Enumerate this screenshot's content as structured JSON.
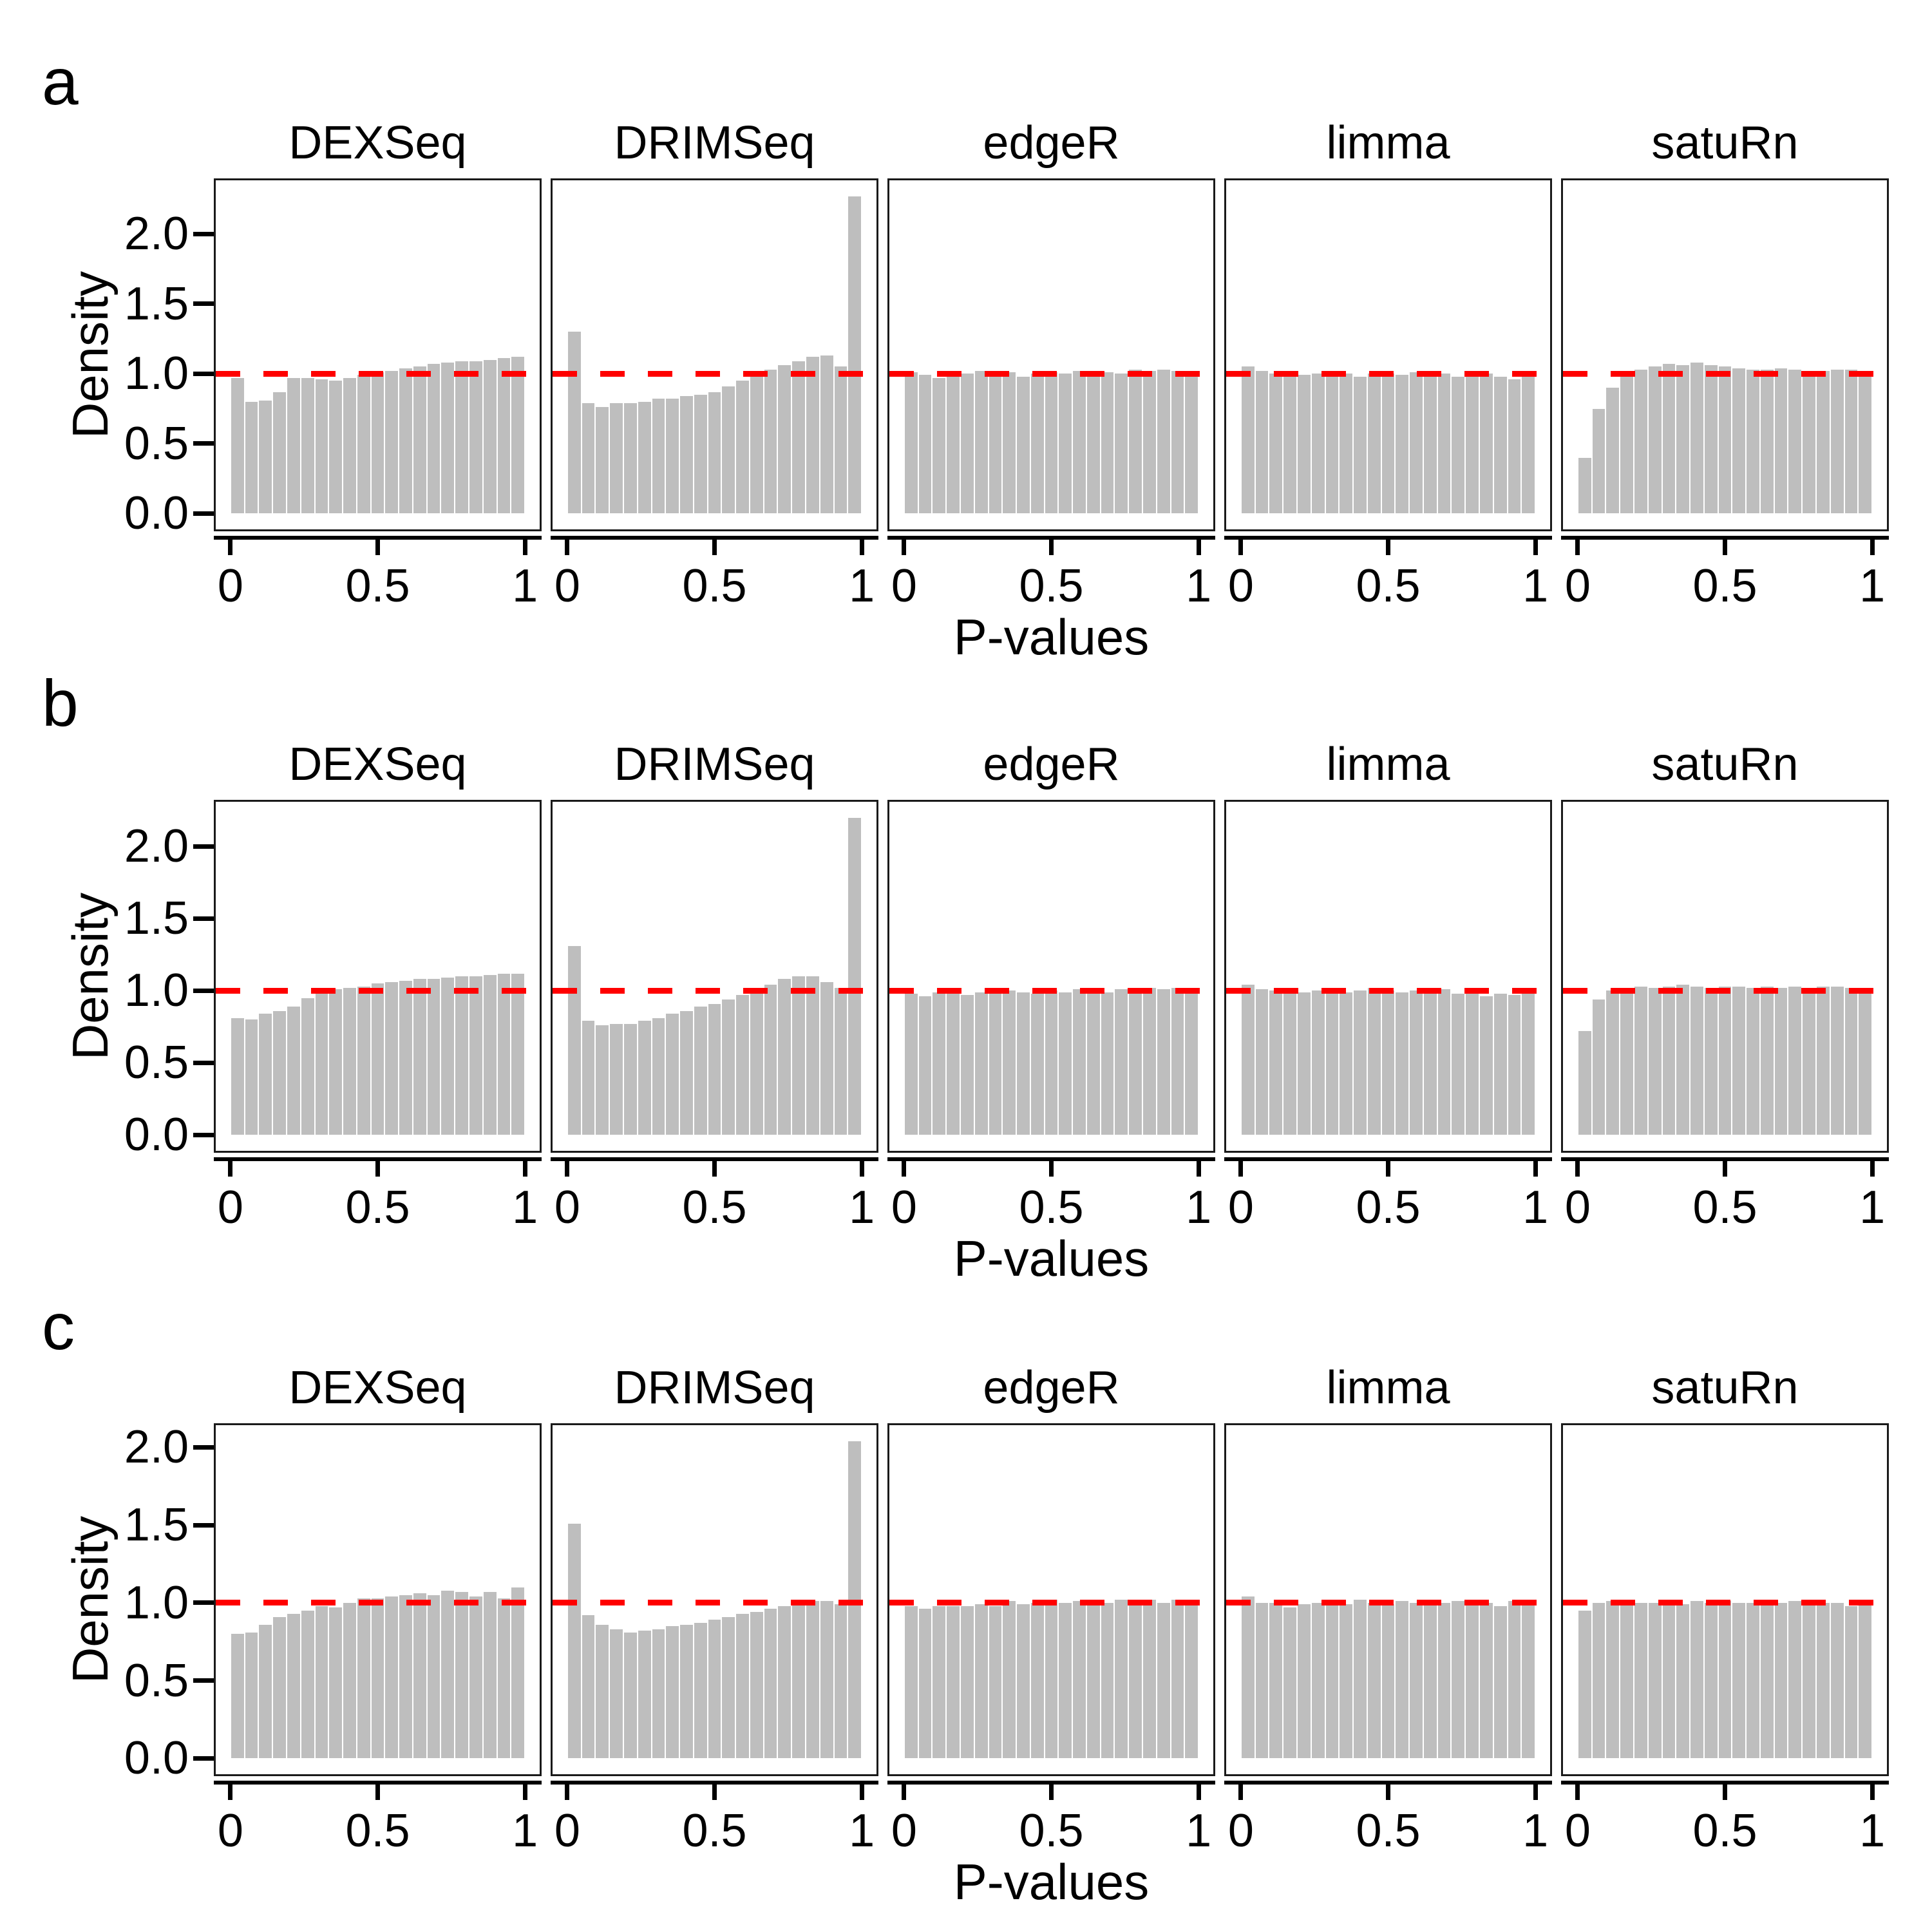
{
  "chart_data": {
    "type": "bar",
    "subtype": "histogram-grid",
    "description": "P-value histograms (density scale) for five methods across three scenarios, with a red dashed reference line at density 1",
    "x_range": [
      0,
      1
    ],
    "n_bins": 21,
    "grid": false,
    "legend": "none",
    "reference_line": {
      "y": 1.0,
      "style": "dashed",
      "color": "#ff0000"
    },
    "colors": {
      "bar_fill": "#bebebe",
      "bar_gap": "#ffffff",
      "panel_border": "#1a1a1a",
      "axis": "#000000",
      "text": "#000000",
      "reference": "#ff0000"
    },
    "y_tick_labels": [
      "0.0",
      "0.5",
      "1.0",
      "1.5",
      "2.0"
    ],
    "y_tick_values": [
      0,
      0.5,
      1.0,
      1.5,
      2.0
    ],
    "x_tick_labels": [
      "0",
      "0.5",
      "1"
    ],
    "x_tick_values": [
      0,
      0.5,
      1
    ],
    "rows": [
      {
        "label": "a",
        "ylabel": "Density",
        "xlabel": "P-values",
        "panels": [
          {
            "title": "DEXSeq",
            "values": [
              0.97,
              0.8,
              0.81,
              0.87,
              0.97,
              0.97,
              0.96,
              0.95,
              0.97,
              0.99,
              1.01,
              1.02,
              1.04,
              1.05,
              1.07,
              1.08,
              1.09,
              1.09,
              1.1,
              1.11,
              1.12
            ]
          },
          {
            "title": "DRIMSeq",
            "values": [
              1.3,
              0.79,
              0.76,
              0.79,
              0.79,
              0.8,
              0.82,
              0.82,
              0.84,
              0.85,
              0.87,
              0.91,
              0.95,
              0.99,
              1.03,
              1.06,
              1.09,
              1.12,
              1.13,
              1.05,
              2.27
            ]
          },
          {
            "title": "edgeR",
            "values": [
              1.01,
              0.99,
              0.97,
              0.99,
              1.0,
              1.02,
              1.0,
              1.01,
              0.98,
              1.0,
              1.01,
              1.0,
              1.02,
              1.0,
              1.01,
              1.0,
              1.03,
              1.02,
              1.03,
              1.02,
              1.02
            ]
          },
          {
            "title": "limma",
            "values": [
              1.05,
              1.02,
              1.0,
              1.01,
              0.99,
              1.0,
              0.99,
              1.0,
              0.98,
              1.0,
              1.0,
              0.99,
              1.01,
              0.99,
              1.0,
              0.98,
              0.99,
              1.0,
              0.98,
              0.96,
              1.0
            ]
          },
          {
            "title": "satuRn",
            "values": [
              0.4,
              0.75,
              0.9,
              0.98,
              1.03,
              1.05,
              1.07,
              1.06,
              1.08,
              1.06,
              1.05,
              1.04,
              1.03,
              1.03,
              1.04,
              1.03,
              1.01,
              1.02,
              1.03,
              1.03,
              1.02
            ]
          }
        ]
      },
      {
        "label": "b",
        "ylabel": "Density",
        "xlabel": "P-values",
        "panels": [
          {
            "title": "DEXSeq",
            "values": [
              0.81,
              0.8,
              0.84,
              0.86,
              0.89,
              0.95,
              0.99,
              1.01,
              1.02,
              1.03,
              1.05,
              1.06,
              1.07,
              1.08,
              1.08,
              1.09,
              1.1,
              1.1,
              1.11,
              1.12,
              1.12
            ]
          },
          {
            "title": "DRIMSeq",
            "values": [
              1.31,
              0.79,
              0.76,
              0.77,
              0.77,
              0.79,
              0.81,
              0.84,
              0.86,
              0.89,
              0.91,
              0.94,
              0.97,
              1.0,
              1.04,
              1.08,
              1.1,
              1.1,
              1.06,
              1.02,
              2.2
            ]
          },
          {
            "title": "edgeR",
            "values": [
              0.98,
              0.96,
              0.99,
              0.98,
              0.97,
              0.99,
              0.98,
              1.0,
              0.99,
              0.98,
              1.0,
              0.99,
              1.01,
              1.0,
              0.99,
              1.01,
              1.0,
              1.02,
              1.01,
              1.02,
              1.01
            ]
          },
          {
            "title": "limma",
            "values": [
              1.04,
              1.01,
              1.0,
              1.01,
              0.99,
              1.0,
              1.01,
              0.99,
              1.0,
              1.02,
              1.0,
              0.99,
              1.0,
              0.99,
              1.01,
              0.98,
              1.0,
              0.96,
              0.98,
              0.97,
              1.0
            ]
          },
          {
            "title": "satuRn",
            "values": [
              0.72,
              0.94,
              1.0,
              1.02,
              1.03,
              1.02,
              1.03,
              1.04,
              1.03,
              1.02,
              1.03,
              1.03,
              1.02,
              1.03,
              1.02,
              1.03,
              1.02,
              1.03,
              1.03,
              1.02,
              1.02
            ]
          }
        ]
      },
      {
        "label": "c",
        "ylabel": "Density",
        "xlabel": "P-values",
        "panels": [
          {
            "title": "DEXSeq",
            "values": [
              0.8,
              0.81,
              0.86,
              0.91,
              0.93,
              0.95,
              0.98,
              0.97,
              1.0,
              1.03,
              1.03,
              1.04,
              1.05,
              1.06,
              1.05,
              1.08,
              1.07,
              1.04,
              1.07,
              1.03,
              1.1
            ]
          },
          {
            "title": "DRIMSeq",
            "values": [
              1.51,
              0.92,
              0.86,
              0.83,
              0.81,
              0.82,
              0.83,
              0.85,
              0.86,
              0.87,
              0.89,
              0.91,
              0.93,
              0.94,
              0.96,
              0.98,
              1.0,
              1.01,
              1.01,
              0.99,
              2.04
            ]
          },
          {
            "title": "edgeR",
            "values": [
              0.98,
              0.96,
              0.98,
              0.98,
              0.98,
              0.99,
              0.98,
              1.01,
              0.99,
              1.0,
              1.02,
              1.0,
              1.01,
              1.01,
              1.0,
              1.02,
              1.01,
              1.02,
              1.0,
              1.02,
              1.01
            ]
          },
          {
            "title": "limma",
            "values": [
              1.04,
              1.0,
              1.0,
              0.97,
              0.99,
              1.0,
              1.01,
              0.99,
              1.02,
              1.0,
              0.99,
              1.01,
              1.0,
              1.02,
              1.0,
              1.01,
              0.99,
              1.0,
              0.98,
              1.01,
              1.0
            ]
          },
          {
            "title": "satuRn",
            "values": [
              0.95,
              1.0,
              1.01,
              1.0,
              1.0,
              1.0,
              0.99,
              0.99,
              1.01,
              1.0,
              1.01,
              1.0,
              1.0,
              1.01,
              1.0,
              1.01,
              1.02,
              1.0,
              1.0,
              0.98,
              1.0
            ]
          }
        ]
      }
    ]
  }
}
